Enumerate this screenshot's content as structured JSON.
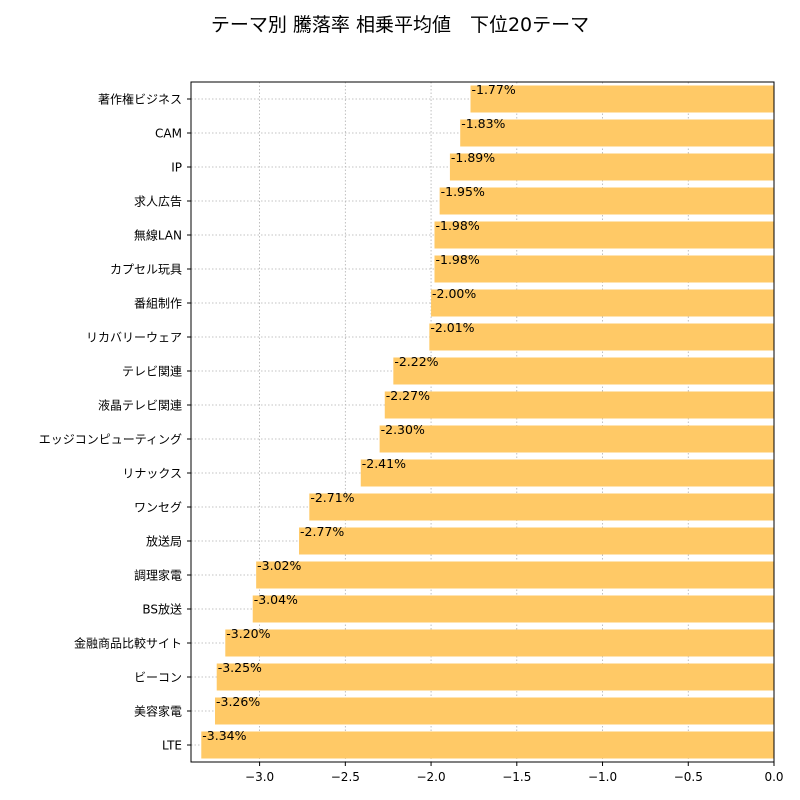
{
  "chart_data": {
    "type": "bar",
    "orientation": "horizontal",
    "title": "テーマ別 騰落率 相乗平均値　下位20テーマ",
    "xlabel": "",
    "ylabel": "",
    "xlim": [
      -3.4,
      0.0
    ],
    "xticks": [
      -3.0,
      -2.5,
      -2.0,
      -1.5,
      -1.0,
      -0.5,
      0.0
    ],
    "xtick_labels": [
      "−3.0",
      "−2.5",
      "−2.0",
      "−1.5",
      "−1.0",
      "−0.5",
      "0.0"
    ],
    "grid": true,
    "bar_color": "#ffc966",
    "categories": [
      "著作権ビジネス",
      "CAM",
      "IP",
      "求人広告",
      "無線LAN",
      "カプセル玩具",
      "番組制作",
      "リカバリーウェア",
      "テレビ関連",
      "液晶テレビ関連",
      "エッジコンピューティング",
      "リナックス",
      "ワンセグ",
      "放送局",
      "調理家電",
      "BS放送",
      "金融商品比較サイト",
      "ビーコン",
      "美容家電",
      "LTE"
    ],
    "values": [
      -1.77,
      -1.83,
      -1.89,
      -1.95,
      -1.98,
      -1.98,
      -2.0,
      -2.01,
      -2.22,
      -2.27,
      -2.3,
      -2.41,
      -2.71,
      -2.77,
      -3.02,
      -3.04,
      -3.2,
      -3.25,
      -3.26,
      -3.34
    ],
    "data_labels": [
      "-1.77%",
      "-1.83%",
      "-1.89%",
      "-1.95%",
      "-1.98%",
      "-1.98%",
      "-2.00%",
      "-2.01%",
      "-2.22%",
      "-2.27%",
      "-2.30%",
      "-2.41%",
      "-2.71%",
      "-2.77%",
      "-3.02%",
      "-3.04%",
      "-3.20%",
      "-3.25%",
      "-3.26%",
      "-3.34%"
    ]
  }
}
